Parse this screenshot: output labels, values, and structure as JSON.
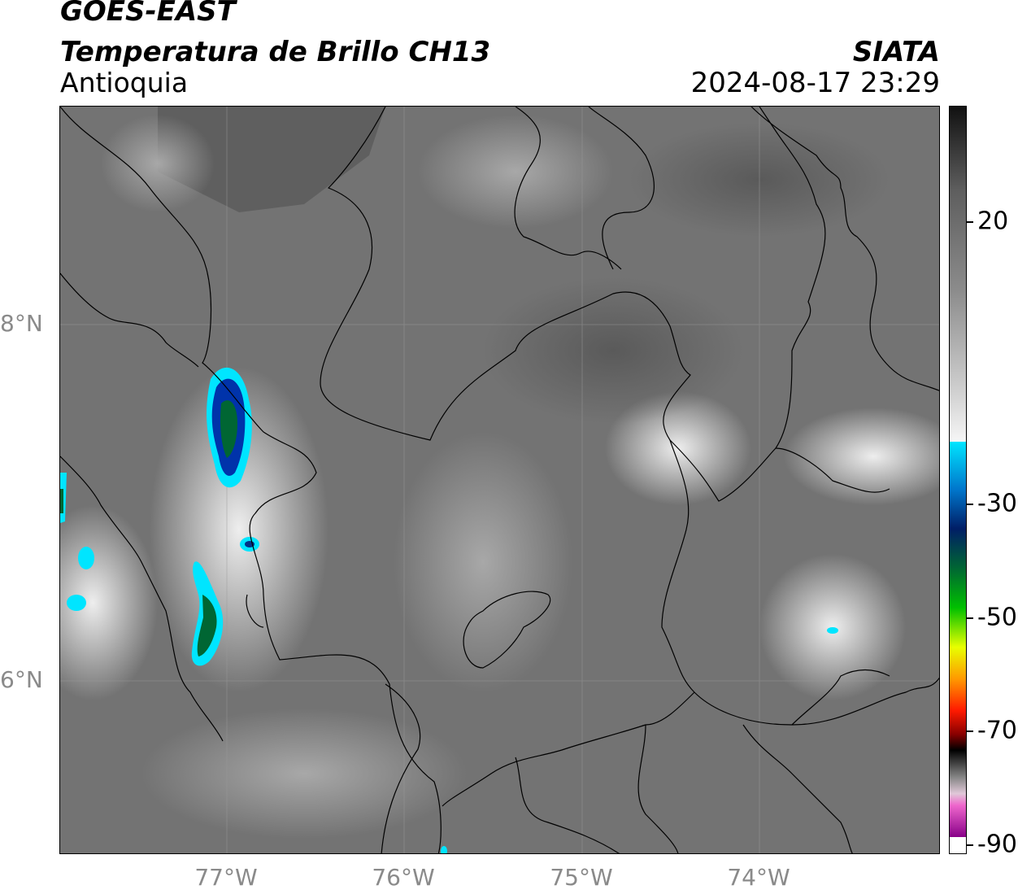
{
  "header": {
    "satellite": "GOES-EAST",
    "product": "Temperatura de Brillo CH13",
    "region": "Antioquia",
    "organization": "SIATA",
    "timestamp": "2024-08-17 23:29"
  },
  "map": {
    "lat_labels": [
      "8°N",
      "6°N"
    ],
    "lon_labels": [
      "77°W",
      "76°W",
      "75°W",
      "74°W"
    ]
  },
  "colorbar": {
    "unit_note": "",
    "ticks": [
      "20",
      "-30",
      "-50",
      "-70",
      "-90"
    ],
    "colors": {
      "warm_dark": "#111111",
      "mid_gray": "#8a8a8a",
      "near_white": "#f2f2f2",
      "cyan": "#00e5ff",
      "blue": "#0033aa",
      "navy": "#001e66",
      "green": "#00c000",
      "yellow": "#e8ff00",
      "orange": "#ff9900",
      "red": "#ff1a00",
      "dark_red": "#880000",
      "black": "#000000",
      "pink": "#ee66cc",
      "purple": "#880088"
    }
  }
}
